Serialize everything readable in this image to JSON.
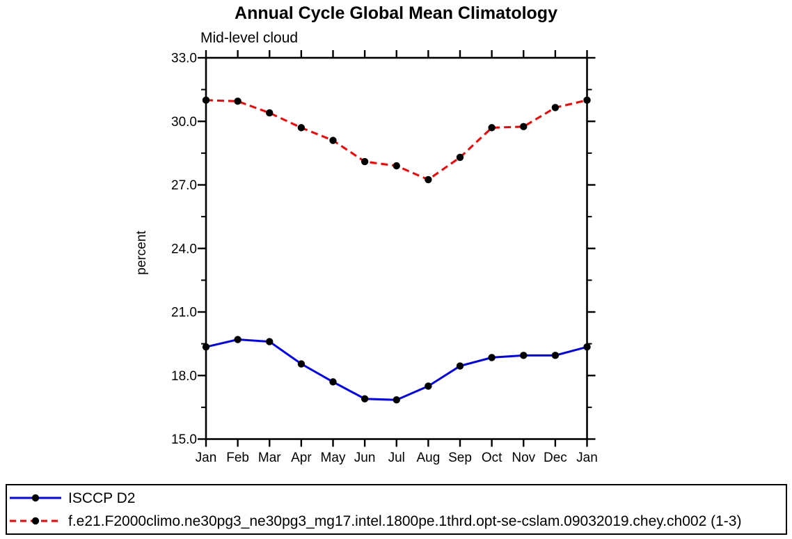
{
  "page": {
    "background": "#ffffff"
  },
  "chart_data": {
    "type": "line",
    "title": "Annual Cycle Global Mean Climatology",
    "subtitle": "Mid-level cloud",
    "xlabel": "",
    "ylabel": "percent",
    "categories": [
      "Jan",
      "Feb",
      "Mar",
      "Apr",
      "May",
      "Jun",
      "Jul",
      "Aug",
      "Sep",
      "Oct",
      "Nov",
      "Dec",
      "Jan"
    ],
    "ylim": [
      15.0,
      33.0
    ],
    "ytick_labels": [
      "33.0",
      "30.0",
      "27.0",
      "24.0",
      "21.0",
      "18.0",
      "15.0"
    ],
    "ytick_major_interval": 3.0,
    "ytick_minor_interval": 1.5,
    "grid": false,
    "legend_position": "bottom box",
    "axis_color": "#000000",
    "marker": "filled-circle",
    "marker_color": "#000000",
    "series": [
      {
        "name": "ISCCP D2",
        "color": "#0000ff",
        "line_style": "solid",
        "values": [
          19.35,
          19.7,
          19.6,
          18.55,
          17.7,
          16.9,
          16.85,
          17.5,
          18.45,
          18.85,
          18.95,
          18.95,
          19.35
        ]
      },
      {
        "name": "f.e21.F2000climo.ne30pg3_ne30pg3_mg17.intel.1800pe.1thrd.opt-se-cslam.09032019.chey.ch002 (1-3)",
        "color": "#ff0000",
        "line_style": "dashed",
        "values": [
          31.0,
          30.95,
          30.4,
          29.7,
          29.1,
          28.1,
          27.9,
          27.25,
          28.3,
          29.7,
          29.75,
          30.65,
          31.0
        ]
      }
    ]
  }
}
